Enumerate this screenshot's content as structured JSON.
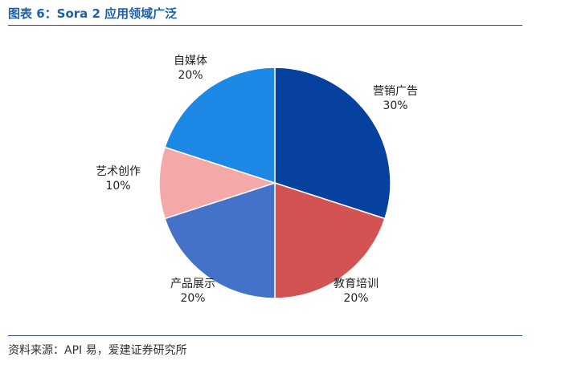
{
  "title": "图表 6：Sora 2 应用领域广泛",
  "source": "资料来源：API 易，爱建证券研究所",
  "chart_data": {
    "type": "pie",
    "start_angle_deg": 0,
    "direction": "clockwise",
    "legend": "none",
    "slices": [
      {
        "label": "营销广告",
        "value": 30,
        "value_label": "30%",
        "color": "#0641a0"
      },
      {
        "label": "教育培训",
        "value": 20,
        "value_label": "20%",
        "color": "#d35353"
      },
      {
        "label": "产品展示",
        "value": 20,
        "value_label": "20%",
        "color": "#4472c8"
      },
      {
        "label": "艺术创作",
        "value": 10,
        "value_label": "10%",
        "color": "#f4a8a8"
      },
      {
        "label": "自媒体",
        "value": 20,
        "value_label": "20%",
        "color": "#1e88e6"
      }
    ]
  }
}
